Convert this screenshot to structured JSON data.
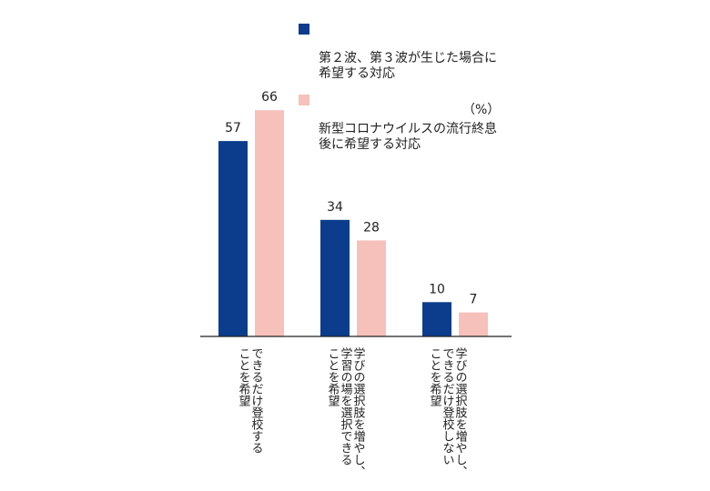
{
  "unit": "（%）",
  "colors": {
    "series1": "#0b3d8c",
    "series2": "#f6c1ba",
    "axis": "#222222"
  },
  "chart_data": {
    "type": "bar",
    "categories": [
      "できるだけ登校する\nことを希望",
      "学びの選択肢を増やし、\n学習の場を選択できる\nことを希望",
      "学びの選択肢を増やし、\nできるだけ登校しない\nことを希望"
    ],
    "series": [
      {
        "name": "第２波、第３波が生じた場合に\n希望する対応",
        "values": [
          57,
          34,
          10
        ]
      },
      {
        "name": "新型コロナウイルスの流行終息\n後に希望する対応",
        "values": [
          66,
          28,
          7
        ]
      }
    ],
    "ylim": [
      0,
      70
    ],
    "legend": "top-right"
  }
}
